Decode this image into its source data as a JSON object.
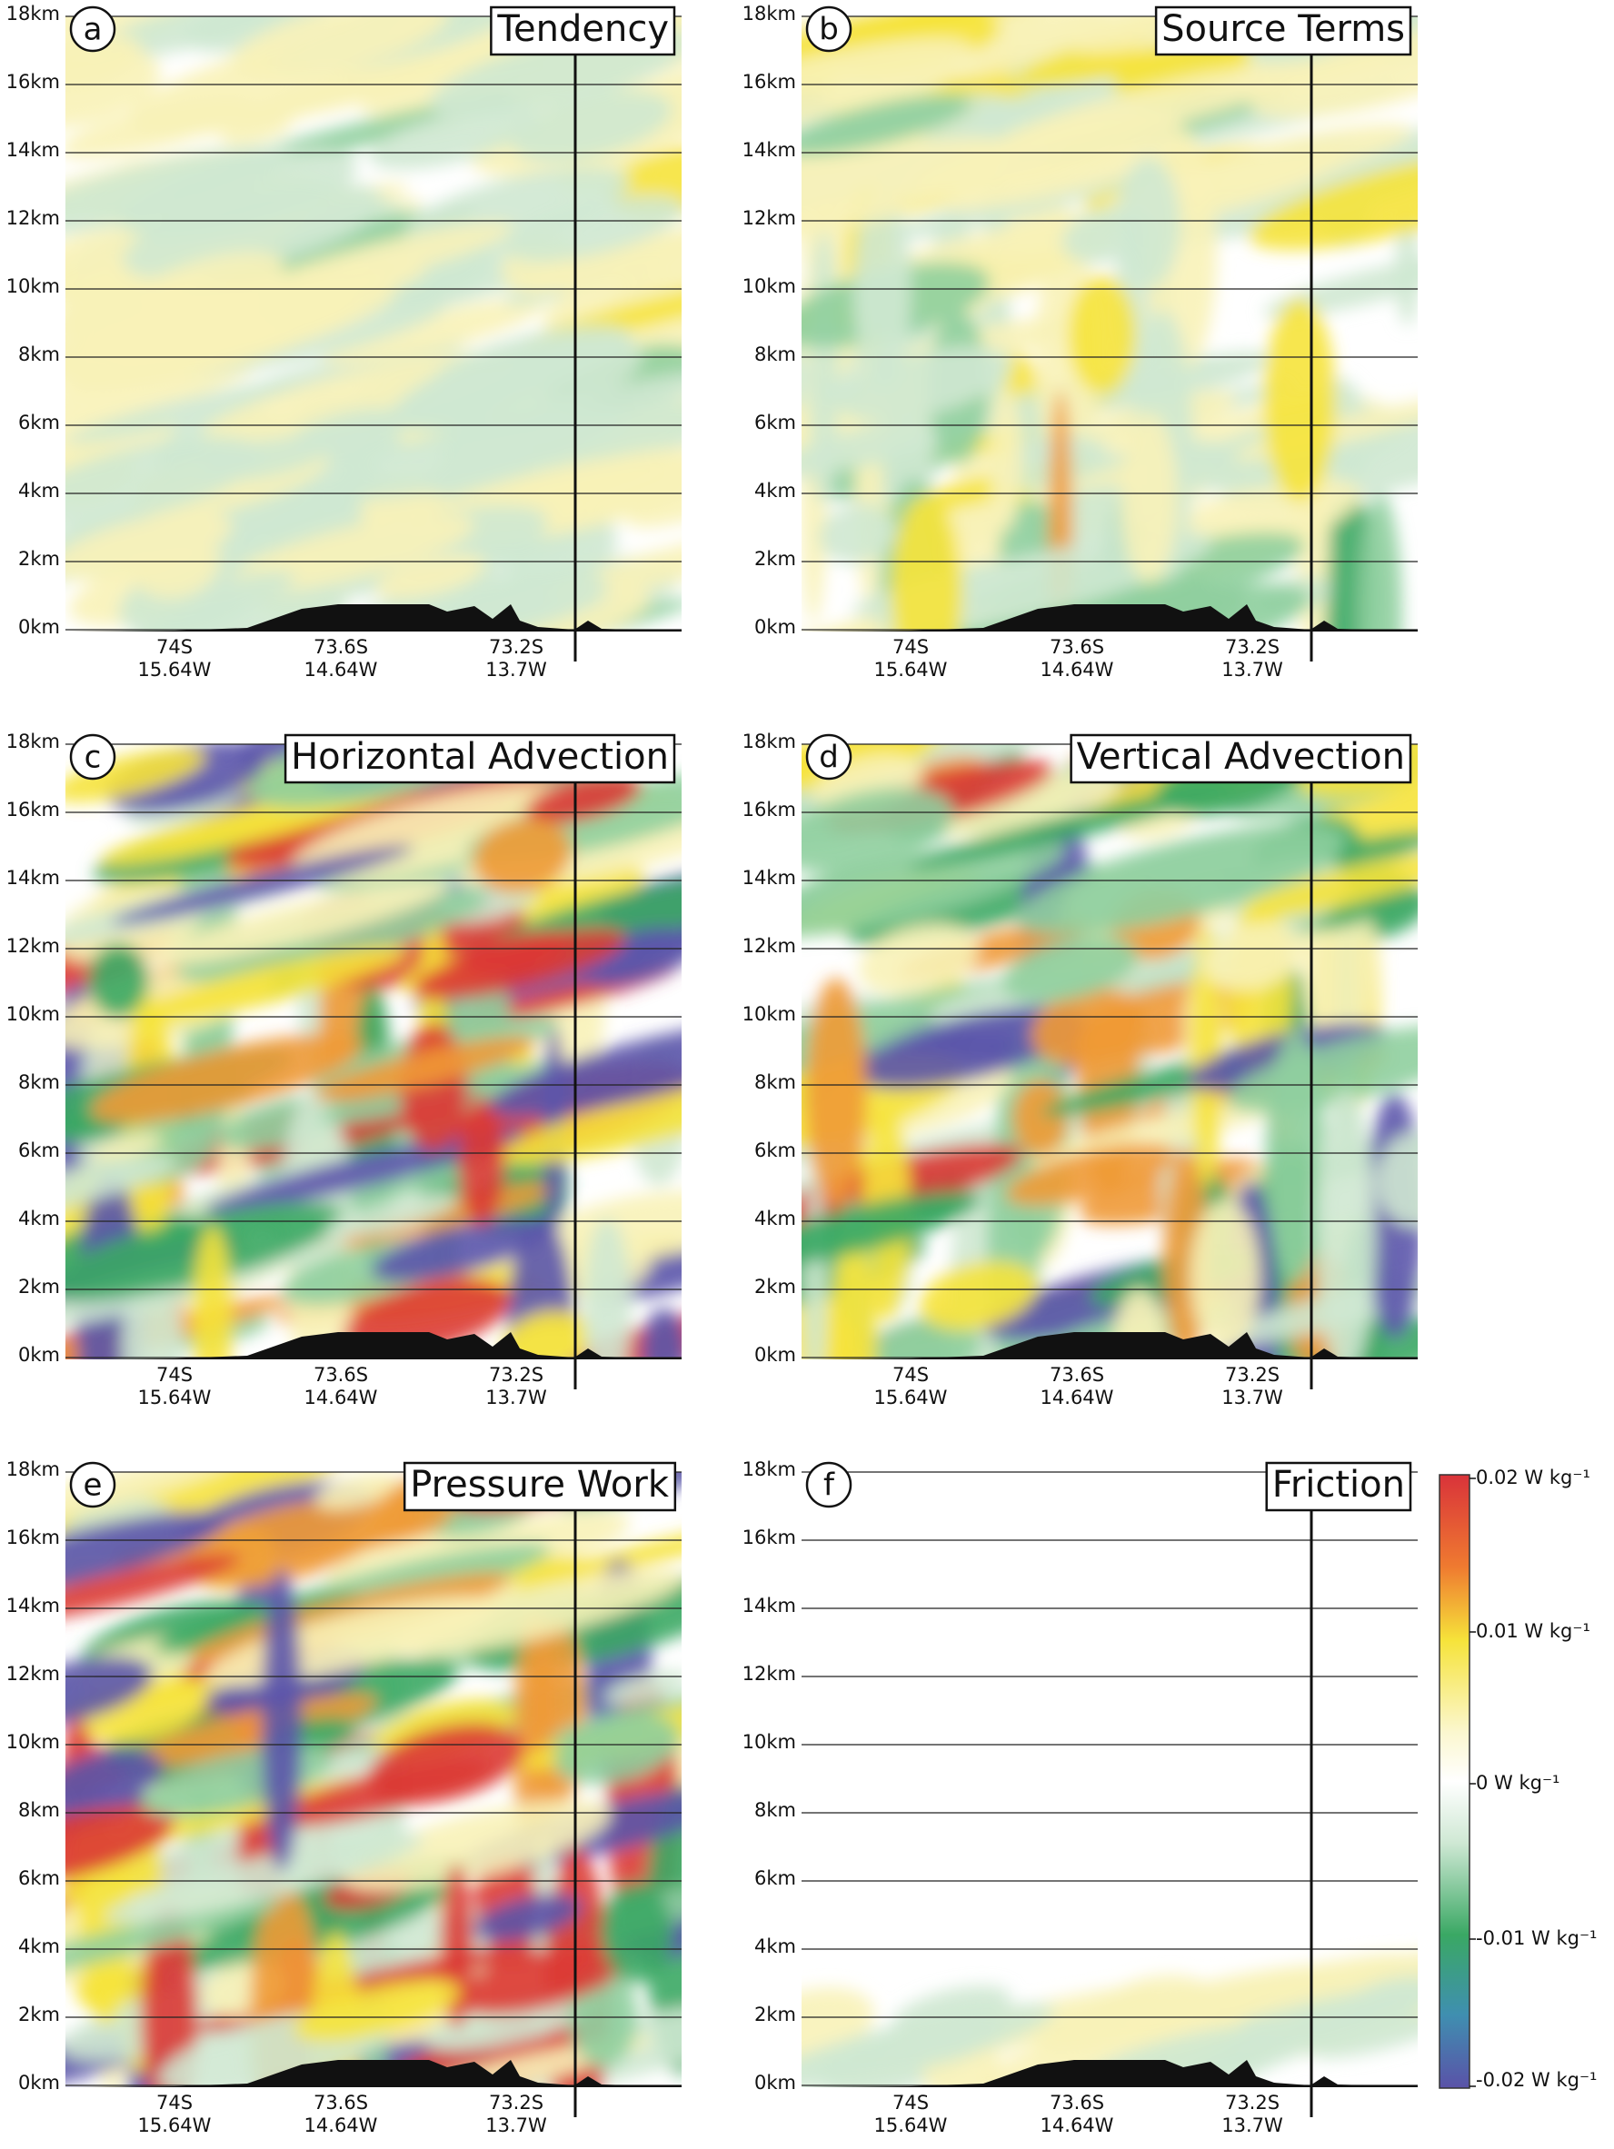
{
  "panels": [
    {
      "letter": "a",
      "title": "Tendency"
    },
    {
      "letter": "b",
      "title": "Source Terms"
    },
    {
      "letter": "c",
      "title": "Horizontal Advection"
    },
    {
      "letter": "d",
      "title": "Vertical Advection"
    },
    {
      "letter": "e",
      "title": "Pressure Work"
    },
    {
      "letter": "f",
      "title": "Friction"
    }
  ],
  "y_tick_labels": [
    "18km",
    "16km",
    "14km",
    "12km",
    "10km",
    "8km",
    "6km",
    "4km",
    "2km",
    "0km"
  ],
  "x_tick_labels": [
    {
      "lat": "74S",
      "lon": "15.64W"
    },
    {
      "lat": "73.6S",
      "lon": "14.64W"
    },
    {
      "lat": "73.2S",
      "lon": "13.7W"
    }
  ],
  "colorbar": {
    "labels": [
      "0.02 W kg⁻¹",
      "0.01 W kg⁻¹",
      "0 W kg⁻¹",
      "-0.01 W kg⁻¹",
      "-0.02 W kg⁻¹"
    ]
  }
}
